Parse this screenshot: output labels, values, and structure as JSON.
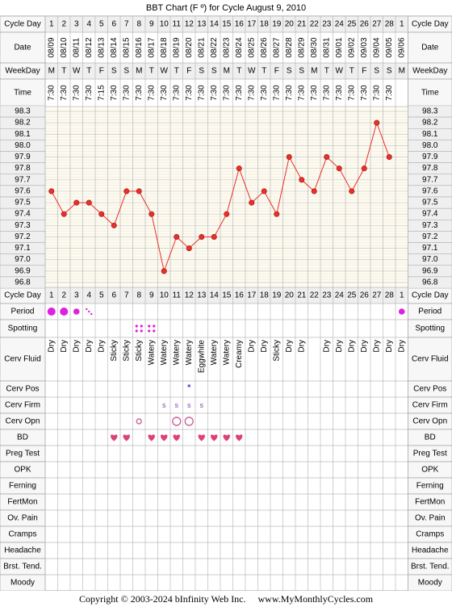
{
  "title": "BBT Chart (F º) for Cycle August 9, 2010",
  "footer": {
    "copyright": "Copyright © 2003-2024 bInfinity Web Inc.",
    "site": "www.MyMonthlyCycles.com"
  },
  "colors": {
    "grid": "#999999",
    "chart_bg": "#fdfaf0",
    "line": "#e8302a",
    "header_bg": "#efefef",
    "temp_label_bg": "#efefef",
    "period": "#e020e0",
    "heart": "#e0407a",
    "peak": "#cc6699"
  },
  "row_labels": {
    "cycle_day": "Cycle Day",
    "date": "Date",
    "weekday": "WeekDay",
    "time": "Time",
    "period": "Period",
    "spotting": "Spotting",
    "cerv_fluid": "Cerv Fluid",
    "cerv_pos": "Cerv Pos",
    "cerv_firm": "Cerv Firm",
    "cerv_opn": "Cerv Opn",
    "bd": "BD",
    "preg_test": "Preg Test",
    "opk": "OPK",
    "ferning": "Ferning",
    "fertmon": "FertMon",
    "ov_pain": "Ov. Pain",
    "cramps": "Cramps",
    "headache": "Headache",
    "brst_tend": "Brst. Tend.",
    "moody": "Moody"
  },
  "chart_data": {
    "type": "line",
    "title": "BBT Chart (F º) for Cycle August 9, 2010",
    "ylim": [
      96.8,
      98.3
    ],
    "yticks": [
      "98.3",
      "98.2",
      "98.1",
      "98.0",
      "97.9",
      "97.8",
      "97.7",
      "97.6",
      "97.5",
      "97.4",
      "97.3",
      "97.2",
      "97.1",
      "97.0",
      "96.9",
      "96.8"
    ],
    "cycle_days": [
      "1",
      "2",
      "3",
      "4",
      "5",
      "6",
      "7",
      "8",
      "9",
      "10",
      "11",
      "12",
      "13",
      "14",
      "15",
      "16",
      "17",
      "18",
      "19",
      "20",
      "21",
      "22",
      "23",
      "24",
      "25",
      "26",
      "27",
      "28",
      "1"
    ],
    "dates": [
      "08/09",
      "08/10",
      "08/11",
      "08/12",
      "08/13",
      "08/14",
      "08/15",
      "08/16",
      "08/17",
      "08/18",
      "08/19",
      "08/20",
      "08/21",
      "08/22",
      "08/23",
      "08/24",
      "08/25",
      "08/26",
      "08/27",
      "08/28",
      "08/29",
      "08/30",
      "08/31",
      "09/01",
      "09/02",
      "09/03",
      "09/04",
      "09/05",
      "09/06"
    ],
    "weekdays": [
      "M",
      "T",
      "W",
      "T",
      "F",
      "S",
      "S",
      "M",
      "T",
      "W",
      "T",
      "F",
      "S",
      "S",
      "M",
      "T",
      "W",
      "T",
      "F",
      "S",
      "S",
      "M",
      "T",
      "W",
      "T",
      "F",
      "S",
      "S",
      "M"
    ],
    "times": [
      "7:30",
      "7:30",
      "7:30",
      "7:30",
      "7:15",
      "7:30",
      "7:30",
      "7:30",
      "7:30",
      "7:30",
      "7:30",
      "7:30",
      "7:30",
      "7:30",
      "7:30",
      "7:30",
      "7:30",
      "7:30",
      "7:30",
      "7:30",
      "7:30",
      "7:30",
      "7:30",
      "7:30",
      "7:30",
      "7:30",
      "7:30",
      "7:30",
      ""
    ],
    "temps": [
      97.6,
      97.4,
      97.5,
      97.5,
      97.4,
      97.3,
      97.6,
      97.6,
      97.4,
      96.9,
      97.2,
      97.1,
      97.2,
      97.2,
      97.4,
      97.8,
      97.5,
      97.6,
      97.4,
      97.9,
      97.7,
      97.6,
      97.9,
      97.8,
      97.6,
      97.8,
      98.2,
      97.9,
      null
    ],
    "period": [
      "heavy",
      "heavy",
      "medium",
      "spotting",
      "",
      "",
      "",
      "",
      "",
      "",
      "",
      "",
      "",
      "",
      "",
      "",
      "",
      "",
      "",
      "",
      "",
      "",
      "",
      "",
      "",
      "",
      "",
      "",
      "medium"
    ],
    "spotting": [
      "",
      "",
      "",
      "",
      "",
      "",
      "",
      "yes",
      "yes",
      "",
      "",
      "",
      "",
      "",
      "",
      "",
      "",
      "",
      "",
      "",
      "",
      "",
      "",
      "",
      "",
      "",
      "",
      "",
      ""
    ],
    "cerv_fluid": [
      "Dry",
      "Dry",
      "Dry",
      "Dry",
      "Dry",
      "Sticky",
      "Sticky",
      "Sticky",
      "Watery",
      "Watery",
      "Watery",
      "Watery",
      "Eggwhite",
      "Watery",
      "Watery",
      "Creamy",
      "Dry",
      "Dry",
      "Sticky",
      "Dry",
      "Dry",
      "",
      "Dry",
      "Dry",
      "Dry",
      "Dry",
      "Dry",
      "Dry",
      "Dry"
    ],
    "cerv_pos": [
      "",
      "",
      "",
      "",
      "",
      "",
      "",
      "",
      "",
      "",
      "",
      "high",
      "",
      "",
      "",
      "",
      "",
      "",
      "",
      "",
      "",
      "",
      "",
      "",
      "",
      "",
      "",
      "",
      ""
    ],
    "cerv_firm": [
      "",
      "",
      "",
      "",
      "",
      "",
      "",
      "",
      "",
      "S",
      "S",
      "S",
      "S",
      "",
      "",
      "",
      "",
      "",
      "",
      "",
      "",
      "",
      "",
      "",
      "",
      "",
      "",
      "",
      ""
    ],
    "cerv_opn": [
      "",
      "",
      "",
      "",
      "",
      "",
      "",
      "small",
      "",
      "",
      "large",
      "large",
      "",
      "",
      "",
      "",
      "",
      "",
      "",
      "",
      "",
      "",
      "",
      "",
      "",
      "",
      "",
      "",
      ""
    ],
    "bd": [
      "",
      "",
      "",
      "",
      "",
      "yes",
      "yes",
      "",
      "yes",
      "yes",
      "yes",
      "",
      "yes",
      "yes",
      "yes",
      "yes",
      "",
      "",
      "",
      "",
      "",
      "",
      "",
      "",
      "",
      "",
      "",
      "",
      ""
    ]
  }
}
